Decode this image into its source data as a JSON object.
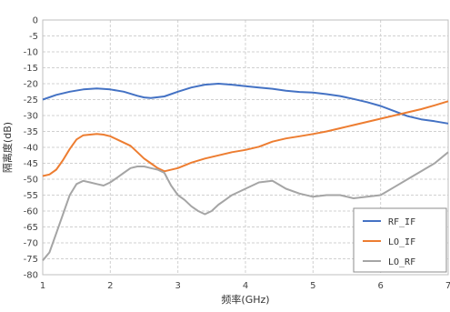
{
  "chart_data": {
    "type": "line",
    "xlabel": "频率(GHz)",
    "ylabel": "隔离度(dB)",
    "xlim": [
      1,
      7
    ],
    "ylim": [
      -80,
      0
    ],
    "xticks": [
      1,
      2,
      3,
      4,
      5,
      6,
      7
    ],
    "yticks": [
      0,
      -5,
      -10,
      -15,
      -20,
      -25,
      -30,
      -35,
      -40,
      -45,
      -50,
      -55,
      -60,
      -65,
      -70,
      -75,
      -80
    ],
    "grid": true,
    "legend_position": "bottom-right",
    "series": [
      {
        "name": "RF_IF",
        "color": "#4472C4",
        "x": [
          1.0,
          1.2,
          1.4,
          1.6,
          1.8,
          2.0,
          2.2,
          2.4,
          2.5,
          2.6,
          2.8,
          3.0,
          3.2,
          3.4,
          3.6,
          3.8,
          4.0,
          4.2,
          4.4,
          4.6,
          4.8,
          5.0,
          5.2,
          5.4,
          5.6,
          5.8,
          6.0,
          6.2,
          6.4,
          6.6,
          6.8,
          7.0
        ],
        "y": [
          -25.0,
          -23.5,
          -22.5,
          -21.8,
          -21.5,
          -21.8,
          -22.5,
          -23.8,
          -24.3,
          -24.5,
          -24.0,
          -22.5,
          -21.2,
          -20.3,
          -20.0,
          -20.3,
          -20.8,
          -21.2,
          -21.6,
          -22.2,
          -22.6,
          -22.8,
          -23.3,
          -23.9,
          -24.8,
          -25.8,
          -27.0,
          -28.6,
          -30.2,
          -31.2,
          -31.8,
          -32.5
        ]
      },
      {
        "name": "LO_IF",
        "color": "#ED7D31",
        "x": [
          1.0,
          1.1,
          1.2,
          1.3,
          1.4,
          1.5,
          1.6,
          1.7,
          1.8,
          1.9,
          2.0,
          2.1,
          2.2,
          2.3,
          2.4,
          2.5,
          2.6,
          2.7,
          2.8,
          3.0,
          3.2,
          3.4,
          3.6,
          3.8,
          4.0,
          4.2,
          4.4,
          4.6,
          4.8,
          5.0,
          5.2,
          5.4,
          5.6,
          5.8,
          6.0,
          6.2,
          6.4,
          6.6,
          6.8,
          7.0
        ],
        "y": [
          -49.0,
          -48.5,
          -47.0,
          -44.0,
          -40.5,
          -37.5,
          -36.2,
          -36.0,
          -35.8,
          -36.0,
          -36.5,
          -37.5,
          -38.5,
          -39.5,
          -41.5,
          -43.5,
          -45.0,
          -46.5,
          -47.5,
          -46.5,
          -44.8,
          -43.5,
          -42.5,
          -41.5,
          -40.8,
          -39.8,
          -38.2,
          -37.2,
          -36.5,
          -35.8,
          -35.0,
          -34.0,
          -33.0,
          -32.0,
          -31.0,
          -30.0,
          -29.0,
          -28.0,
          -26.8,
          -25.5
        ]
      },
      {
        "name": "LO_RF",
        "color": "#A5A5A5",
        "x": [
          1.0,
          1.1,
          1.2,
          1.3,
          1.4,
          1.5,
          1.6,
          1.7,
          1.8,
          1.9,
          2.0,
          2.1,
          2.2,
          2.3,
          2.4,
          2.5,
          2.6,
          2.7,
          2.8,
          2.9,
          3.0,
          3.1,
          3.2,
          3.3,
          3.4,
          3.5,
          3.6,
          3.7,
          3.8,
          3.9,
          4.0,
          4.2,
          4.4,
          4.6,
          4.8,
          5.0,
          5.2,
          5.4,
          5.6,
          5.8,
          6.0,
          6.2,
          6.4,
          6.6,
          6.8,
          7.0
        ],
        "y": [
          -75.5,
          -73.0,
          -67.0,
          -61.0,
          -55.0,
          -51.5,
          -50.5,
          -51.0,
          -51.5,
          -52.0,
          -51.0,
          -49.5,
          -48.0,
          -46.5,
          -46.0,
          -46.0,
          -46.5,
          -47.0,
          -48.0,
          -52.0,
          -55.0,
          -56.5,
          -58.5,
          -60.0,
          -61.0,
          -60.0,
          -58.0,
          -56.5,
          -55.0,
          -54.0,
          -53.0,
          -51.0,
          -50.5,
          -53.0,
          -54.5,
          -55.5,
          -55.0,
          -55.0,
          -56.0,
          -55.5,
          -55.0,
          -52.5,
          -50.0,
          -47.5,
          -45.0,
          -41.5
        ]
      }
    ]
  }
}
